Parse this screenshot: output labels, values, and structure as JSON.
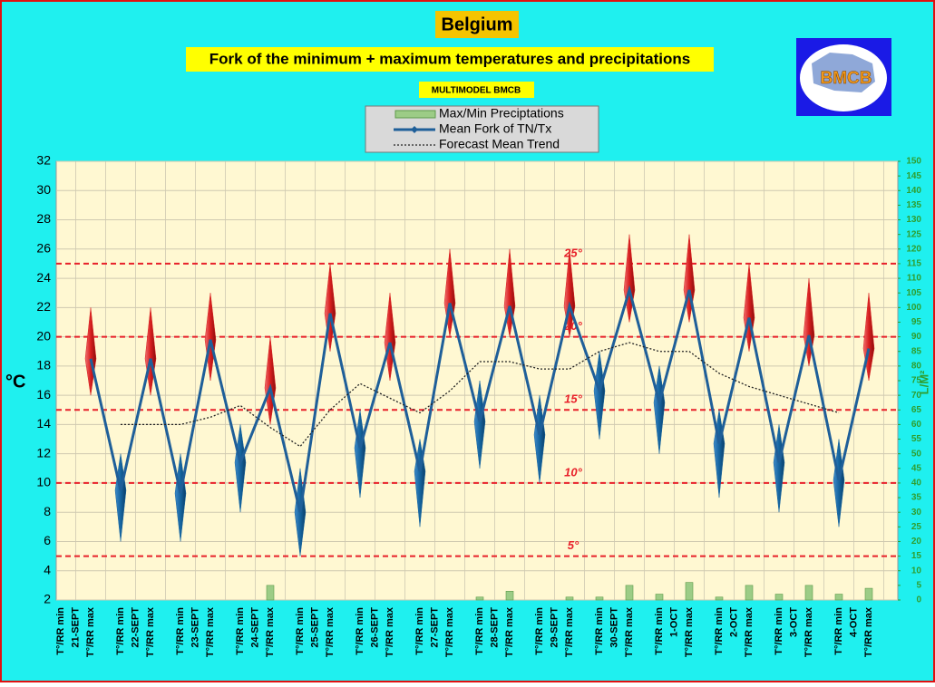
{
  "logo": "BMCB",
  "chart_data": {
    "type": "line",
    "title": "Belgium",
    "subtitle": "Fork of the minimum + maximum temperatures and precipitations",
    "source": "MULTIMODEL BMCB",
    "ylabel": "°C",
    "y2label": "L/M²",
    "categories": [
      "T°/RR min",
      "T°/RR max",
      "T°/RR min",
      "T°/RR max",
      "T°/RR min",
      "T°/RR max",
      "T°/RR min",
      "T°/RR max",
      "T°/RR min",
      "T°/RR max",
      "T°/RR min",
      "T°/RR max",
      "T°/RR min",
      "T°/RR max",
      "T°/RR min",
      "T°/RR max",
      "T°/RR min",
      "T°/RR max",
      "T°/RR min",
      "T°/RR max",
      "T°/RR min",
      "T°/RR max",
      "T°/RR min",
      "T°/RR max",
      "T°/RR min",
      "T°/RR max",
      "T°/RR min",
      "T°/RR max"
    ],
    "dates": [
      "21-SEPT",
      "22-SEPT",
      "23-SEPT",
      "24-SEPT",
      "25-SEPT",
      "26-SEPT",
      "27-SEPT",
      "28-SEPT",
      "29-SEPT",
      "30-SEPT",
      "1-OCT",
      "2-OCT",
      "3-OCT",
      "4-OCT"
    ],
    "ylim": [
      2,
      32
    ],
    "yticks": [
      2,
      4,
      6,
      8,
      10,
      12,
      14,
      16,
      18,
      20,
      22,
      24,
      26,
      28,
      30,
      32
    ],
    "y2lim": [
      0,
      150
    ],
    "y2ticks": [
      0,
      5,
      10,
      15,
      20,
      25,
      30,
      35,
      40,
      45,
      50,
      55,
      60,
      65,
      70,
      75,
      80,
      85,
      90,
      95,
      100,
      105,
      110,
      115,
      120,
      125,
      130,
      135,
      140,
      145,
      150
    ],
    "grid": true,
    "reference_lines": [
      {
        "value": 25,
        "label": "25°"
      },
      {
        "value": 20,
        "label": "20°"
      },
      {
        "value": 15,
        "label": "15°"
      },
      {
        "value": 10,
        "label": "10°"
      },
      {
        "value": 5,
        "label": "5°"
      }
    ],
    "reference_color": "#e8202a",
    "series": [
      {
        "name": "Max/Min Preciptations",
        "color": "#9ccc86",
        "axis": "y2",
        "values": [
          0,
          0,
          0,
          0,
          0,
          0,
          0,
          5,
          0,
          0,
          0,
          0,
          0,
          0,
          1,
          3,
          0,
          1,
          1,
          5,
          2,
          6,
          1,
          5,
          2,
          5,
          2,
          4
        ]
      },
      {
        "name": "Mean Fork of TN/Tx",
        "color": "#1f5f99",
        "fork_colors": [
          "#1565a0",
          "#d81e1e"
        ],
        "values": [
          null,
          18.5,
          9.5,
          18.5,
          9.3,
          19.8,
          11.4,
          16.5,
          8.0,
          21.6,
          12.4,
          19.6,
          10.8,
          22.3,
          14.2,
          22.1,
          13.3,
          22.1,
          16.3,
          23.2,
          15.5,
          23.2,
          12.7,
          21.3,
          11.4,
          20.1,
          10.2,
          19.2
        ],
        "low": [
          null,
          16,
          6,
          16,
          6,
          17,
          8,
          14,
          5,
          19,
          9,
          17,
          7,
          20,
          11,
          20,
          10,
          20,
          13,
          21,
          12,
          21,
          9,
          19,
          8,
          18,
          7,
          17
        ],
        "high": [
          null,
          22,
          12,
          22,
          12,
          23,
          14,
          20,
          11,
          25,
          15,
          23,
          13,
          26,
          17,
          26,
          16,
          26,
          19,
          27,
          18,
          27,
          15,
          25,
          14,
          24,
          13,
          23
        ]
      },
      {
        "name": "Forecast Mean Trend",
        "color": "#222222",
        "values": [
          null,
          null,
          14.0,
          14.0,
          14.0,
          14.5,
          15.3,
          13.8,
          12.5,
          15.0,
          16.8,
          15.8,
          14.8,
          16.3,
          18.3,
          18.3,
          17.8,
          17.8,
          19.0,
          19.6,
          19.0,
          19.0,
          17.5,
          16.6,
          16.0,
          15.4,
          14.8,
          null
        ]
      }
    ]
  }
}
